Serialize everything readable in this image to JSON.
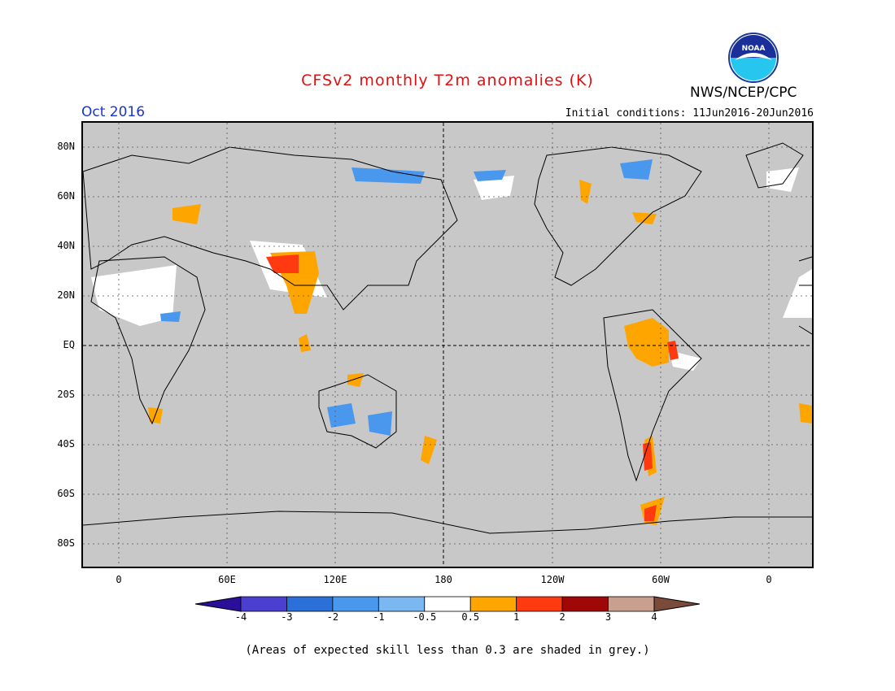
{
  "header": {
    "title": "CFSv2 monthly T2m anomalies (K)",
    "agency": "NWS/NCEP/CPC",
    "logo_text": "NOAA",
    "target_month": "Oct 2016",
    "initial_conditions": "Initial conditions: 11Jun2016-20Jun2016"
  },
  "map": {
    "lat_labels": [
      "80N",
      "60N",
      "40N",
      "20N",
      "EQ",
      "20S",
      "40S",
      "60S",
      "80S"
    ],
    "lon_labels": [
      "0",
      "60E",
      "120E",
      "180",
      "120W",
      "60W",
      "0"
    ],
    "background_color": "#c8c8c8"
  },
  "colorbar": {
    "tick_labels": [
      "-4",
      "-3",
      "-2",
      "-1",
      "-0.5",
      "0.5",
      "1",
      "2",
      "3",
      "4"
    ],
    "colors": [
      "#2a0f9a",
      "#4a3fd0",
      "#2b6fd8",
      "#4a98ee",
      "#7bb8f2",
      "#ffffff",
      "#ffa500",
      "#ff3a10",
      "#a00808",
      "#c9a090",
      "#7a4a3a"
    ]
  },
  "footnote": "(Areas of expected skill less than 0.3 are shaded in grey.)"
}
